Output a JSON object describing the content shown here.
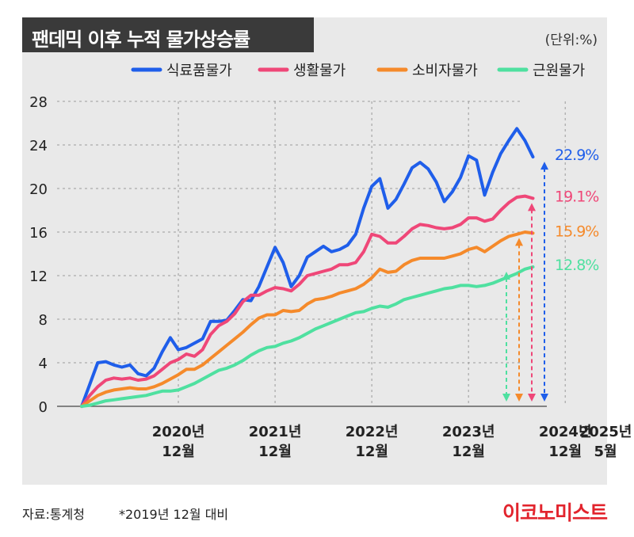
{
  "header": {
    "title": "팬데믹 이후 누적 물가상승률",
    "unit": "(단위:%)"
  },
  "footer": {
    "source": "자료:통계청",
    "note": "*2019년 12월 대비",
    "brand": "이코노미스트"
  },
  "colors": {
    "food": "#1f5eea",
    "living": "#ef4778",
    "cpi": "#f58a2b",
    "core": "#4fe0a0"
  },
  "chart_data": {
    "type": "line",
    "title": "팬데믹 이후 누적 물가상승률",
    "ylim": [
      0,
      28
    ],
    "yticks": [
      "0",
      "4",
      "8",
      "12",
      "16",
      "20",
      "24",
      "28"
    ],
    "xticks": [
      {
        "year": "2020년",
        "month": "12월"
      },
      {
        "year": "2021년",
        "month": "12월"
      },
      {
        "year": "2022년",
        "month": "12월"
      },
      {
        "year": "2023년",
        "month": "12월"
      },
      {
        "year": "2024년",
        "month": "12월"
      },
      {
        "year": "2025년",
        "month": "5월"
      }
    ],
    "grid": true,
    "legend_position": "top-right",
    "x_start": "2019-12",
    "x_end": "2025-05",
    "series": [
      {
        "name": "식료품물가",
        "color_key": "food",
        "end_label": "22.9%",
        "final_value": 22.9,
        "points": [
          [
            0,
            0
          ],
          [
            1,
            2
          ],
          [
            2,
            4
          ],
          [
            3,
            4.1
          ],
          [
            4,
            3.8
          ],
          [
            5,
            3.6
          ],
          [
            6,
            3.8
          ],
          [
            7,
            3.0
          ],
          [
            8,
            2.8
          ],
          [
            9,
            3.5
          ],
          [
            10,
            5.0
          ],
          [
            11,
            6.3
          ],
          [
            12,
            5.2
          ],
          [
            13,
            5.4
          ],
          [
            14,
            5.8
          ],
          [
            15,
            6.2
          ],
          [
            16,
            7.8
          ],
          [
            17,
            7.8
          ],
          [
            18,
            7.9
          ],
          [
            19,
            8.8
          ],
          [
            20,
            9.8
          ],
          [
            21,
            9.7
          ],
          [
            22,
            11.0
          ],
          [
            23,
            12.8
          ],
          [
            24,
            14.6
          ],
          [
            25,
            13.2
          ],
          [
            26,
            11.0
          ],
          [
            27,
            12.0
          ],
          [
            28,
            13.7
          ],
          [
            29,
            14.2
          ],
          [
            30,
            14.7
          ],
          [
            31,
            14.2
          ],
          [
            32,
            14.4
          ],
          [
            33,
            14.8
          ],
          [
            34,
            15.8
          ],
          [
            35,
            18.2
          ],
          [
            36,
            20.2
          ],
          [
            37,
            20.9
          ],
          [
            38,
            18.2
          ],
          [
            39,
            19.0
          ],
          [
            40,
            20.4
          ],
          [
            41,
            21.9
          ],
          [
            42,
            22.4
          ],
          [
            43,
            21.8
          ],
          [
            44,
            20.6
          ],
          [
            45,
            18.8
          ],
          [
            46,
            19.7
          ],
          [
            47,
            21.0
          ],
          [
            48,
            23.0
          ],
          [
            49,
            22.6
          ],
          [
            50,
            19.4
          ],
          [
            51,
            21.5
          ],
          [
            52,
            23.2
          ],
          [
            53,
            24.4
          ],
          [
            54,
            25.5
          ],
          [
            55,
            24.4
          ],
          [
            56,
            22.9
          ]
        ]
      },
      {
        "name": "생활물가",
        "color_key": "living",
        "end_label": "19.1%",
        "final_value": 19.1,
        "points": [
          [
            0,
            0
          ],
          [
            1,
            1.0
          ],
          [
            2,
            1.8
          ],
          [
            3,
            2.4
          ],
          [
            4,
            2.6
          ],
          [
            5,
            2.5
          ],
          [
            6,
            2.6
          ],
          [
            7,
            2.4
          ],
          [
            8,
            2.5
          ],
          [
            9,
            2.8
          ],
          [
            10,
            3.4
          ],
          [
            11,
            4.0
          ],
          [
            12,
            4.3
          ],
          [
            13,
            4.8
          ],
          [
            14,
            4.6
          ],
          [
            15,
            5.2
          ],
          [
            16,
            6.6
          ],
          [
            17,
            7.4
          ],
          [
            18,
            7.8
          ],
          [
            19,
            8.5
          ],
          [
            20,
            9.6
          ],
          [
            21,
            10.2
          ],
          [
            22,
            10.2
          ],
          [
            23,
            10.6
          ],
          [
            24,
            10.9
          ],
          [
            25,
            10.8
          ],
          [
            26,
            10.6
          ],
          [
            27,
            11.2
          ],
          [
            28,
            12.0
          ],
          [
            29,
            12.2
          ],
          [
            30,
            12.4
          ],
          [
            31,
            12.6
          ],
          [
            32,
            13.0
          ],
          [
            33,
            13.0
          ],
          [
            34,
            13.2
          ],
          [
            35,
            14.2
          ],
          [
            36,
            15.8
          ],
          [
            37,
            15.6
          ],
          [
            38,
            15.0
          ],
          [
            39,
            15.0
          ],
          [
            40,
            15.6
          ],
          [
            41,
            16.3
          ],
          [
            42,
            16.7
          ],
          [
            43,
            16.6
          ],
          [
            44,
            16.4
          ],
          [
            45,
            16.3
          ],
          [
            46,
            16.4
          ],
          [
            47,
            16.7
          ],
          [
            48,
            17.3
          ],
          [
            49,
            17.3
          ],
          [
            50,
            17.0
          ],
          [
            51,
            17.2
          ],
          [
            52,
            18.0
          ],
          [
            53,
            18.7
          ],
          [
            54,
            19.2
          ],
          [
            55,
            19.3
          ],
          [
            56,
            19.1
          ]
        ]
      },
      {
        "name": "소비자물가",
        "color_key": "cpi",
        "end_label": "15.9%",
        "final_value": 15.9,
        "points": [
          [
            0,
            0
          ],
          [
            1,
            0.5
          ],
          [
            2,
            1.0
          ],
          [
            3,
            1.3
          ],
          [
            4,
            1.5
          ],
          [
            5,
            1.6
          ],
          [
            6,
            1.7
          ],
          [
            7,
            1.6
          ],
          [
            8,
            1.6
          ],
          [
            9,
            1.8
          ],
          [
            10,
            2.1
          ],
          [
            11,
            2.5
          ],
          [
            12,
            2.9
          ],
          [
            13,
            3.4
          ],
          [
            14,
            3.4
          ],
          [
            15,
            3.8
          ],
          [
            16,
            4.4
          ],
          [
            17,
            5.0
          ],
          [
            18,
            5.6
          ],
          [
            19,
            6.2
          ],
          [
            20,
            6.8
          ],
          [
            21,
            7.5
          ],
          [
            22,
            8.1
          ],
          [
            23,
            8.4
          ],
          [
            24,
            8.4
          ],
          [
            25,
            8.8
          ],
          [
            26,
            8.7
          ],
          [
            27,
            8.8
          ],
          [
            28,
            9.4
          ],
          [
            29,
            9.8
          ],
          [
            30,
            9.9
          ],
          [
            31,
            10.1
          ],
          [
            32,
            10.4
          ],
          [
            33,
            10.6
          ],
          [
            34,
            10.8
          ],
          [
            35,
            11.2
          ],
          [
            36,
            11.8
          ],
          [
            37,
            12.6
          ],
          [
            38,
            12.3
          ],
          [
            39,
            12.4
          ],
          [
            40,
            13.0
          ],
          [
            41,
            13.4
          ],
          [
            42,
            13.6
          ],
          [
            43,
            13.6
          ],
          [
            44,
            13.6
          ],
          [
            45,
            13.6
          ],
          [
            46,
            13.8
          ],
          [
            47,
            14.0
          ],
          [
            48,
            14.4
          ],
          [
            49,
            14.6
          ],
          [
            50,
            14.2
          ],
          [
            51,
            14.7
          ],
          [
            52,
            15.2
          ],
          [
            53,
            15.6
          ],
          [
            54,
            15.8
          ],
          [
            55,
            16.0
          ],
          [
            56,
            15.9
          ]
        ]
      },
      {
        "name": "근원물가",
        "color_key": "core",
        "end_label": "12.8%",
        "final_value": 12.8,
        "points": [
          [
            0,
            0
          ],
          [
            1,
            0.1
          ],
          [
            2,
            0.3
          ],
          [
            3,
            0.5
          ],
          [
            4,
            0.6
          ],
          [
            5,
            0.7
          ],
          [
            6,
            0.8
          ],
          [
            7,
            0.9
          ],
          [
            8,
            1.0
          ],
          [
            9,
            1.2
          ],
          [
            10,
            1.4
          ],
          [
            11,
            1.4
          ],
          [
            12,
            1.5
          ],
          [
            13,
            1.8
          ],
          [
            14,
            2.1
          ],
          [
            15,
            2.5
          ],
          [
            16,
            2.9
          ],
          [
            17,
            3.3
          ],
          [
            18,
            3.5
          ],
          [
            19,
            3.8
          ],
          [
            20,
            4.2
          ],
          [
            21,
            4.7
          ],
          [
            22,
            5.1
          ],
          [
            23,
            5.4
          ],
          [
            24,
            5.5
          ],
          [
            25,
            5.8
          ],
          [
            26,
            6.0
          ],
          [
            27,
            6.3
          ],
          [
            28,
            6.7
          ],
          [
            29,
            7.1
          ],
          [
            30,
            7.4
          ],
          [
            31,
            7.7
          ],
          [
            32,
            8.0
          ],
          [
            33,
            8.3
          ],
          [
            34,
            8.6
          ],
          [
            35,
            8.7
          ],
          [
            36,
            9.0
          ],
          [
            37,
            9.2
          ],
          [
            38,
            9.1
          ],
          [
            39,
            9.4
          ],
          [
            40,
            9.8
          ],
          [
            41,
            10.0
          ],
          [
            42,
            10.2
          ],
          [
            43,
            10.4
          ],
          [
            44,
            10.6
          ],
          [
            45,
            10.8
          ],
          [
            46,
            10.9
          ],
          [
            47,
            11.1
          ],
          [
            48,
            11.1
          ],
          [
            49,
            11.0
          ],
          [
            50,
            11.1
          ],
          [
            51,
            11.3
          ],
          [
            52,
            11.6
          ],
          [
            53,
            11.9
          ],
          [
            54,
            12.2
          ],
          [
            55,
            12.6
          ],
          [
            56,
            12.8
          ]
        ]
      }
    ]
  }
}
